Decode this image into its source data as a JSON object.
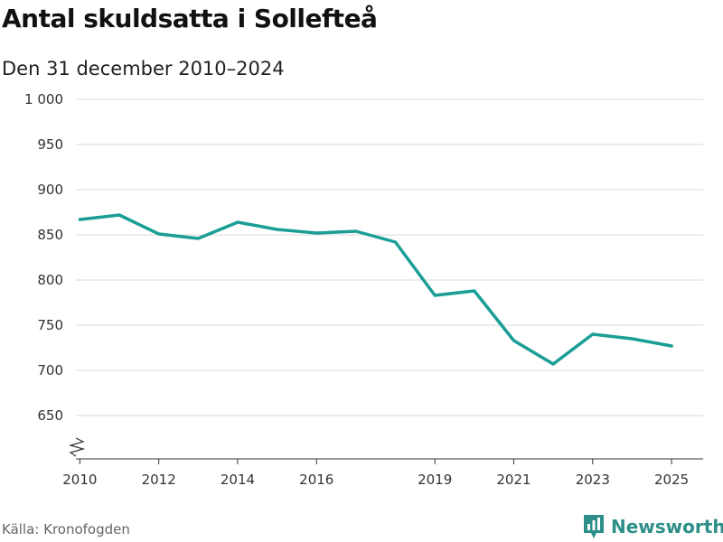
{
  "header": {
    "title": "Antal skuldsatta i Sollefteå",
    "subtitle": "Den 31 december 2010–2024"
  },
  "footer": {
    "source": "Källa: Kronofogden",
    "brand": "Newsworthy",
    "brand_icon": "bar-chart-logo-icon"
  },
  "colors": {
    "line": "#1a9e96",
    "grid": "#d9d9d9",
    "axis": "#333333",
    "brand": "#2e8f88"
  },
  "chart_data": {
    "type": "line",
    "title": "Antal skuldsatta i Sollefteå",
    "subtitle": "Den 31 december 2010–2024",
    "xlabel": "",
    "ylabel": "",
    "x": [
      2010,
      2011,
      2012,
      2013,
      2014,
      2015,
      2016,
      2017,
      2018,
      2019,
      2020,
      2021,
      2022,
      2023,
      2024,
      2025
    ],
    "series": [
      {
        "name": "Antal skuldsatta",
        "values": [
          867,
          872,
          851,
          846,
          864,
          856,
          852,
          854,
          842,
          783,
          788,
          733,
          707,
          740,
          735,
          727
        ]
      }
    ],
    "xlim": [
      2009.9,
      2025.8
    ],
    "ylim": [
      600,
      1000
    ],
    "yticks": [
      650,
      700,
      750,
      800,
      850,
      900,
      950,
      1000
    ],
    "ytick_labels": [
      "650",
      "700",
      "750",
      "800",
      "850",
      "900",
      "950",
      "1 000"
    ],
    "xticks": [
      2010,
      2012,
      2014,
      2016,
      2019,
      2021,
      2023,
      2025
    ],
    "xtick_labels": [
      "2010",
      "2012",
      "2014",
      "2016",
      "2019",
      "2021",
      "2023",
      "2025"
    ],
    "grid": true,
    "axis_break": true
  }
}
